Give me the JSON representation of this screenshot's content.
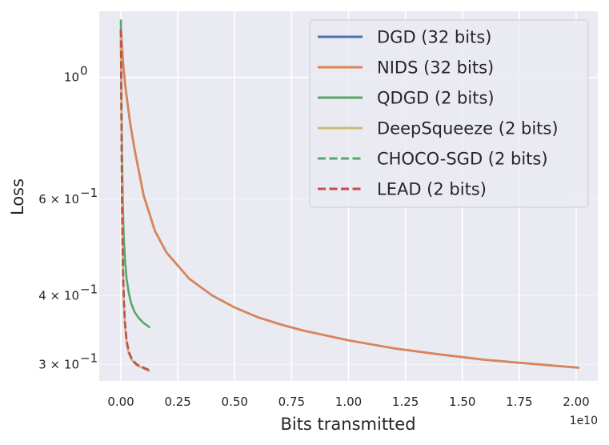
{
  "chart_data": {
    "type": "line",
    "title": "",
    "xlabel": "Bits transmitted",
    "ylabel": "Loss",
    "x_offset_label": "1e10",
    "xlim": [
      -0.095,
      2.095
    ],
    "ylim": [
      0.28,
      1.32
    ],
    "yscale": "log",
    "grid": true,
    "legend_position": "top-right",
    "x_ticks": [
      {
        "value": 0.0,
        "label": "0.00"
      },
      {
        "value": 0.25,
        "label": "0.25"
      },
      {
        "value": 0.5,
        "label": "0.50"
      },
      {
        "value": 0.75,
        "label": "0.75"
      },
      {
        "value": 1.0,
        "label": "1.00"
      },
      {
        "value": 1.25,
        "label": "1.25"
      },
      {
        "value": 1.5,
        "label": "1.50"
      },
      {
        "value": 1.75,
        "label": "1.75"
      },
      {
        "value": 2.0,
        "label": "2.00"
      }
    ],
    "y_ticks": [
      {
        "value": 1.0,
        "base": "10",
        "exp": "0",
        "prefix": ""
      },
      {
        "value": 0.6,
        "base": "10",
        "exp": "−1",
        "prefix": "6 × "
      },
      {
        "value": 0.4,
        "base": "10",
        "exp": "−1",
        "prefix": "4 × "
      },
      {
        "value": 0.3,
        "base": "10",
        "exp": "−1",
        "prefix": "3 × "
      }
    ],
    "series": [
      {
        "name": "DGD (32 bits)",
        "color": "#4c72b0",
        "dash": "solid",
        "x": [
          0.0,
          0.0025,
          0.005,
          0.01,
          0.02,
          0.04,
          0.06,
          0.1,
          0.15,
          0.2,
          0.3,
          0.4,
          0.5,
          0.6,
          0.7,
          0.8,
          1.0,
          1.2,
          1.4,
          1.6,
          1.8,
          2.01
        ],
        "y": [
          1.22,
          1.19,
          1.14,
          1.06,
          0.96,
          0.83,
          0.74,
          0.61,
          0.525,
          0.48,
          0.43,
          0.401,
          0.381,
          0.366,
          0.355,
          0.346,
          0.332,
          0.321,
          0.313,
          0.306,
          0.301,
          0.296
        ]
      },
      {
        "name": "NIDS (32 bits)",
        "color": "#dd8452",
        "dash": "solid",
        "x": [
          0.0,
          0.0025,
          0.005,
          0.01,
          0.02,
          0.04,
          0.06,
          0.1,
          0.15,
          0.2,
          0.3,
          0.4,
          0.5,
          0.6,
          0.7,
          0.8,
          1.0,
          1.2,
          1.4,
          1.6,
          1.8,
          2.01
        ],
        "y": [
          1.22,
          1.19,
          1.14,
          1.06,
          0.96,
          0.83,
          0.74,
          0.61,
          0.525,
          0.48,
          0.43,
          0.401,
          0.381,
          0.366,
          0.355,
          0.346,
          0.332,
          0.321,
          0.313,
          0.306,
          0.301,
          0.296
        ]
      },
      {
        "name": "QDGD (2 bits)",
        "color": "#55a868",
        "dash": "solid",
        "x": [
          0.0,
          0.002,
          0.004,
          0.008,
          0.012,
          0.018,
          0.025,
          0.035,
          0.045,
          0.06,
          0.08,
          0.1,
          0.125
        ],
        "y": [
          1.27,
          1.0,
          0.8,
          0.6,
          0.52,
          0.465,
          0.43,
          0.405,
          0.388,
          0.374,
          0.364,
          0.357,
          0.351
        ]
      },
      {
        "name": "DeepSqueeze (2 bits)",
        "color": "#ccb974",
        "dash": "solid",
        "x": [
          0.0,
          0.002,
          0.004,
          0.006,
          0.009,
          0.013,
          0.018,
          0.025,
          0.035,
          0.05,
          0.07,
          0.1,
          0.125
        ],
        "y": [
          1.2,
          0.9,
          0.68,
          0.55,
          0.45,
          0.39,
          0.355,
          0.33,
          0.314,
          0.305,
          0.299,
          0.295,
          0.292
        ]
      },
      {
        "name": "CHOCO-SGD (2 bits)",
        "color": "#55a868",
        "dash": "dashed",
        "x": [
          0.0,
          0.002,
          0.004,
          0.006,
          0.009,
          0.013,
          0.018,
          0.025,
          0.035,
          0.05,
          0.07,
          0.1,
          0.125
        ],
        "y": [
          1.22,
          0.91,
          0.69,
          0.555,
          0.455,
          0.393,
          0.357,
          0.332,
          0.316,
          0.306,
          0.3,
          0.296,
          0.293
        ]
      },
      {
        "name": "LEAD (2 bits)",
        "color": "#c44e52",
        "dash": "dashed",
        "x": [
          0.0,
          0.002,
          0.004,
          0.006,
          0.009,
          0.013,
          0.018,
          0.025,
          0.035,
          0.05,
          0.07,
          0.1,
          0.125
        ],
        "y": [
          1.22,
          0.91,
          0.69,
          0.555,
          0.455,
          0.393,
          0.357,
          0.332,
          0.316,
          0.306,
          0.3,
          0.296,
          0.293
        ]
      }
    ]
  }
}
